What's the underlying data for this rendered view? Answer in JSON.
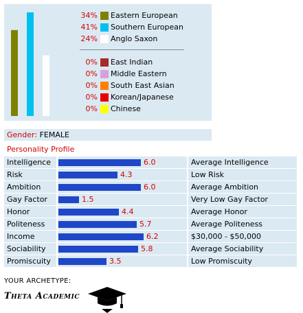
{
  "ethnicity": {
    "groups": [
      {
        "pct": "34%",
        "label": "Eastern European",
        "value": 34,
        "color": "#808000"
      },
      {
        "pct": "41%",
        "label": "Southern European",
        "value": 41,
        "color": "#00c0f0"
      },
      {
        "pct": "24%",
        "label": "Anglo Saxon",
        "value": 24,
        "color": "#ffffff"
      }
    ],
    "other_groups": [
      {
        "pct": "0%",
        "label": "East Indian",
        "color": "#a52a2a"
      },
      {
        "pct": "0%",
        "label": "Middle Eastern",
        "color": "#d8a0d8"
      },
      {
        "pct": "0%",
        "label": "South East Asian",
        "color": "#ff8000"
      },
      {
        "pct": "0%",
        "label": "Korean/Japanese",
        "color": "#e60000"
      },
      {
        "pct": "0%",
        "label": "Chinese",
        "color": "#ffff00"
      }
    ]
  },
  "gender": {
    "label": "Gender:",
    "value": "FEMALE"
  },
  "personality": {
    "title": "Personality Profile",
    "traits": [
      {
        "name": "Intelligence",
        "score": "6.0",
        "value": 6.0,
        "description": "Average Intelligence"
      },
      {
        "name": "Risk",
        "score": "4.3",
        "value": 4.3,
        "description": "Low Risk"
      },
      {
        "name": "Ambition",
        "score": "6.0",
        "value": 6.0,
        "description": "Average Ambition"
      },
      {
        "name": "Gay Factor",
        "score": "1.5",
        "value": 1.5,
        "description": "Very Low Gay Factor"
      },
      {
        "name": "Honor",
        "score": "4.4",
        "value": 4.4,
        "description": "Average Honor"
      },
      {
        "name": "Politeness",
        "score": "5.7",
        "value": 5.7,
        "description": "Average Politeness"
      },
      {
        "name": "Income",
        "score": "6.2",
        "value": 6.2,
        "description": "$30,000 - $50,000"
      },
      {
        "name": "Sociability",
        "score": "5.8",
        "value": 5.8,
        "description": "Average Sociability"
      },
      {
        "name": "Promiscuity",
        "score": "3.5",
        "value": 3.5,
        "description": "Low Promiscuity"
      }
    ]
  },
  "archetype": {
    "label": "YOUR ARCHETYPE:",
    "name": "Theta Academic",
    "icon": "graduation-cap-icon"
  },
  "colors": {
    "accent_red": "#d40000",
    "bar_blue": "#1f47c8",
    "panel_bg": "#dbe9f2"
  }
}
